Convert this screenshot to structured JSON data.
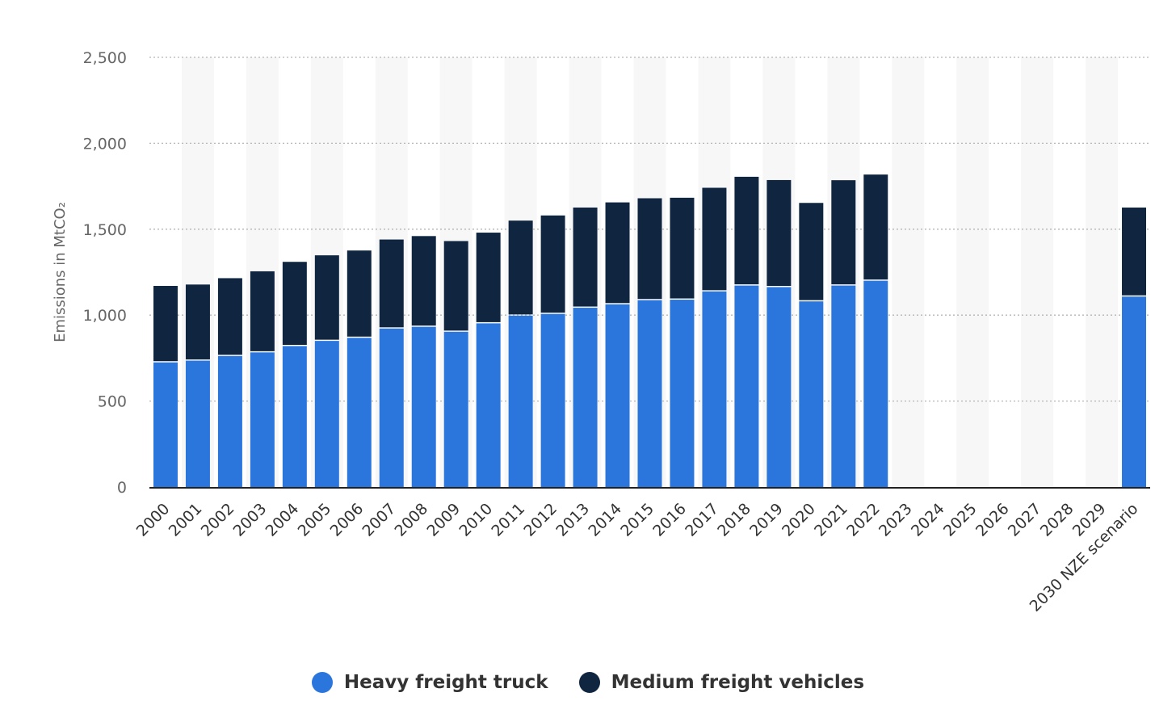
{
  "chart_data": {
    "type": "bar",
    "stacked": true,
    "categories": [
      "2000",
      "2001",
      "2002",
      "2003",
      "2004",
      "2005",
      "2006",
      "2007",
      "2008",
      "2009",
      "2010",
      "2011",
      "2012",
      "2013",
      "2014",
      "2015",
      "2016",
      "2017",
      "2018",
      "2019",
      "2020",
      "2021",
      "2022",
      "2023",
      "2024",
      "2025",
      "2026",
      "2027",
      "2028",
      "2029",
      "2030 NZE scenario"
    ],
    "series": [
      {
        "name": "Heavy freight truck",
        "color": "#2a76dd",
        "values": [
          725,
          735,
          762,
          783,
          820,
          850,
          868,
          922,
          932,
          903,
          952,
          997,
          1007,
          1043,
          1063,
          1087,
          1090,
          1138,
          1172,
          1163,
          1080,
          1172,
          1200,
          null,
          null,
          null,
          null,
          null,
          null,
          null,
          1108
        ]
      },
      {
        "name": "Medium freight vehicles",
        "color": "#0f2540",
        "values": [
          445,
          443,
          453,
          472,
          490,
          498,
          508,
          518,
          528,
          528,
          528,
          553,
          573,
          583,
          593,
          593,
          593,
          603,
          633,
          623,
          573,
          613,
          618,
          null,
          null,
          null,
          null,
          null,
          null,
          null,
          518
        ]
      }
    ],
    "ylabel": "Emissions in MtCO₂",
    "xlabel": "",
    "ylim": [
      0,
      2500
    ],
    "yticks": [
      0,
      500,
      1000,
      1500,
      2000,
      2500
    ],
    "ytick_labels": [
      "0",
      "500",
      "1,000",
      "1,500",
      "2,000",
      "2,500"
    ],
    "grid": true,
    "legend_position": "bottom-center"
  }
}
